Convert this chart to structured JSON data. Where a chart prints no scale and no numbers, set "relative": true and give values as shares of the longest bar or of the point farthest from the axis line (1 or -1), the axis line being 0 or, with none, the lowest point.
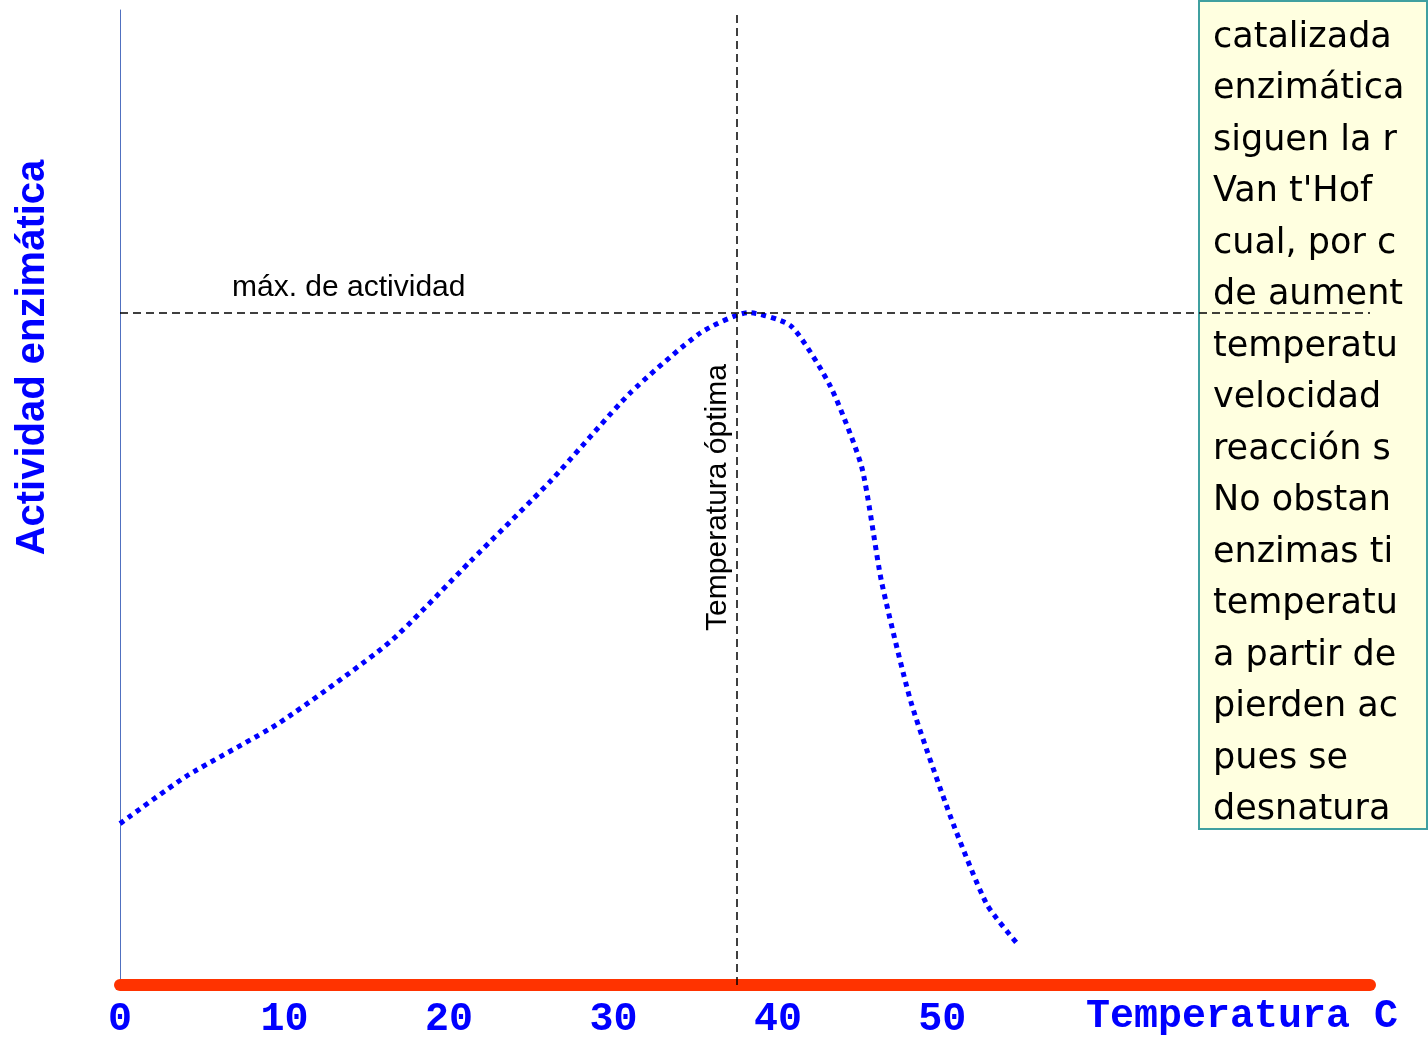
{
  "chart_data": {
    "type": "line",
    "relative": true,
    "xlabel": "Temperatura C",
    "ylabel": "Actividad enzimática",
    "xlim": [
      0,
      76
    ],
    "xticks": [
      0,
      10,
      20,
      30,
      40,
      50
    ],
    "grid": false,
    "marker": "none",
    "line_style": "dotted",
    "series": [
      {
        "color": "#0000ff",
        "x": [
          0,
          4,
          9.7,
          16.4,
          21.3,
          26.2,
          31,
          35.3,
          38.2,
          40.8,
          43.2,
          45.1,
          46.3,
          48.1,
          50.5,
          52.7,
          54.6
        ],
        "values": [
          0.24,
          0.31,
          0.39,
          0.51,
          0.63,
          0.75,
          0.88,
          0.97,
          1.0,
          0.98,
          0.89,
          0.77,
          0.6,
          0.42,
          0.25,
          0.12,
          0.06
        ]
      }
    ],
    "ref_lines": [
      {
        "axis": "y",
        "value": 1,
        "label": "máx. de actividad",
        "color": "#000000",
        "line_style": "dashed"
      },
      {
        "axis": "x",
        "value": 37.5,
        "label": "Temperatura óptima",
        "color": "#000000",
        "line_style": "dashed"
      }
    ],
    "annotations": [
      "catalizada\nenzimática\nsiguen la r\nVan t'Hof\ncual, por c\nde aument\ntemperatu\nvelocidad\nreacción s\nNo obstan\nenzimas ti\ntemperatu\na partir de\npierden ac\npues se\ndesnatura"
    ]
  }
}
